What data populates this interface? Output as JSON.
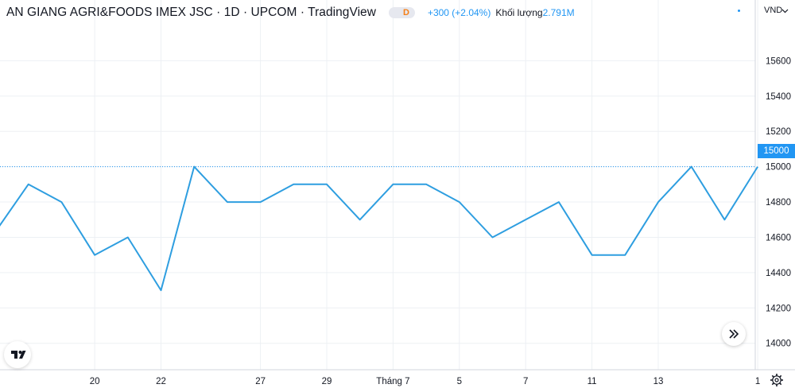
{
  "header": {
    "title": "AN GIANG AGRI&FOODS IMEX JSC · 1D · UPCOM · TradingView",
    "interval_badge": "D",
    "change": "+300 (+2.04%)",
    "volume_label": "Khối lượng",
    "volume_value": "2.791M"
  },
  "price_axis": {
    "currency": "VND",
    "last_price_label": "15000"
  },
  "colors": {
    "line": "#2e9ee0",
    "grid": "#edf0f4",
    "last_price_tag": "#2196f3",
    "positive_change": "#2196f3"
  },
  "icons": [
    "tradingview-logo-icon",
    "scroll-to-latest-icon",
    "settings-gear-icon",
    "chevron-down-icon"
  ],
  "chart_data": {
    "type": "line",
    "title": "AN GIANG AGRI&FOODS IMEX JSC · 1D · UPCOM · TradingView",
    "xlabel": "",
    "ylabel": "VND",
    "ylim": [
      13850,
      15800
    ],
    "y_ticks": [
      14000,
      14200,
      14400,
      14600,
      14800,
      15000,
      15200,
      15400,
      15600
    ],
    "x_tick_labels": [
      {
        "label": "20",
        "index": 3
      },
      {
        "label": "22",
        "index": 5
      },
      {
        "label": "27",
        "index": 8
      },
      {
        "label": "29",
        "index": 10
      },
      {
        "label": "Tháng 7",
        "index": 12
      },
      {
        "label": "5",
        "index": 14
      },
      {
        "label": "7",
        "index": 16
      },
      {
        "label": "11",
        "index": 18
      },
      {
        "label": "13",
        "index": 20
      },
      {
        "label": "1",
        "index": 23
      }
    ],
    "series": [
      {
        "values": [
          14630,
          14900,
          14800,
          14500,
          14600,
          14300,
          15000,
          14800,
          14800,
          14900,
          14900,
          14700,
          14900,
          14900,
          14800,
          14600,
          14700,
          14800,
          14500,
          14500,
          14800,
          15000,
          14700,
          15000
        ]
      }
    ],
    "last_value": 15000,
    "grid": true,
    "legend": "none"
  }
}
